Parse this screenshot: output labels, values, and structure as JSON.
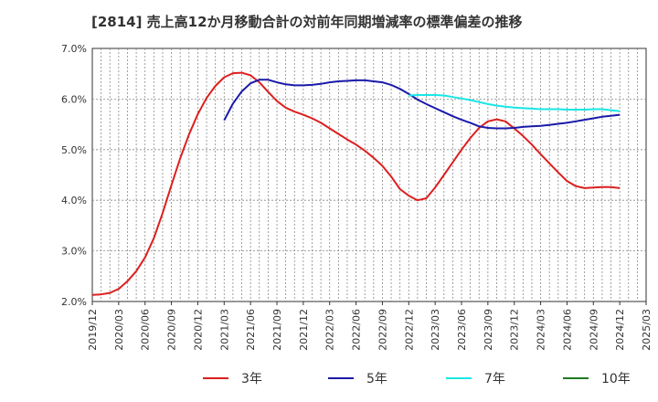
{
  "chart_data": {
    "type": "line",
    "title": "[2814]  売上高12か月移動合計の対前年同期増減率の標準偏差の推移",
    "xlabel": "",
    "ylabel": "",
    "ylim": [
      0.02,
      0.07
    ],
    "y_ticks": [
      "2.0%",
      "3.0%",
      "4.0%",
      "5.0%",
      "6.0%",
      "7.0%"
    ],
    "x_ticks": [
      "2019/12",
      "2020/03",
      "2020/06",
      "2020/09",
      "2020/12",
      "2021/03",
      "2021/06",
      "2021/09",
      "2021/12",
      "2022/03",
      "2022/06",
      "2022/09",
      "2022/12",
      "2023/03",
      "2023/06",
      "2023/09",
      "2023/12",
      "2024/03",
      "2024/06",
      "2024/09",
      "2024/12",
      "2025/03"
    ],
    "grid": true,
    "legend_position": "bottom",
    "series": [
      {
        "name": "3年",
        "color": "#dd1f1f",
        "points": [
          [
            "2019/12",
            0.0213
          ],
          [
            "2020/01",
            0.0214
          ],
          [
            "2020/02",
            0.0217
          ],
          [
            "2020/03",
            0.0225
          ],
          [
            "2020/04",
            0.024
          ],
          [
            "2020/05",
            0.026
          ],
          [
            "2020/06",
            0.0287
          ],
          [
            "2020/07",
            0.0325
          ],
          [
            "2020/08",
            0.0375
          ],
          [
            "2020/09",
            0.043
          ],
          [
            "2020/10",
            0.0483
          ],
          [
            "2020/11",
            0.053
          ],
          [
            "2020/12",
            0.057
          ],
          [
            "2021/01",
            0.0602
          ],
          [
            "2021/02",
            0.0626
          ],
          [
            "2021/03",
            0.0643
          ],
          [
            "2021/04",
            0.0651
          ],
          [
            "2021/05",
            0.0652
          ],
          [
            "2021/06",
            0.0647
          ],
          [
            "2021/07",
            0.0633
          ],
          [
            "2021/08",
            0.0614
          ],
          [
            "2021/09",
            0.0596
          ],
          [
            "2021/10",
            0.0583
          ],
          [
            "2021/11",
            0.0575
          ],
          [
            "2021/12",
            0.0569
          ],
          [
            "2022/01",
            0.0562
          ],
          [
            "2022/02",
            0.0553
          ],
          [
            "2022/03",
            0.0542
          ],
          [
            "2022/04",
            0.0531
          ],
          [
            "2022/05",
            0.052
          ],
          [
            "2022/06",
            0.051
          ],
          [
            "2022/07",
            0.0498
          ],
          [
            "2022/08",
            0.0484
          ],
          [
            "2022/09",
            0.0468
          ],
          [
            "2022/10",
            0.0447
          ],
          [
            "2022/11",
            0.0422
          ],
          [
            "2022/12",
            0.0409
          ],
          [
            "2023/01",
            0.04
          ],
          [
            "2023/02",
            0.0404
          ],
          [
            "2023/03",
            0.0425
          ],
          [
            "2023/04",
            0.045
          ],
          [
            "2023/05",
            0.0475
          ],
          [
            "2023/06",
            0.05
          ],
          [
            "2023/07",
            0.0523
          ],
          [
            "2023/08",
            0.0543
          ],
          [
            "2023/09",
            0.0556
          ],
          [
            "2023/10",
            0.056
          ],
          [
            "2023/11",
            0.0556
          ],
          [
            "2023/12",
            0.0542
          ],
          [
            "2024/01",
            0.0527
          ],
          [
            "2024/02",
            0.051
          ],
          [
            "2024/03",
            0.0491
          ],
          [
            "2024/04",
            0.0473
          ],
          [
            "2024/05",
            0.0455
          ],
          [
            "2024/06",
            0.0438
          ],
          [
            "2024/07",
            0.0428
          ],
          [
            "2024/08",
            0.0424
          ],
          [
            "2024/09",
            0.0425
          ],
          [
            "2024/10",
            0.0426
          ],
          [
            "2024/11",
            0.0426
          ],
          [
            "2024/12",
            0.0424
          ]
        ]
      },
      {
        "name": "5年",
        "color": "#1a1aaa",
        "points": [
          [
            "2021/03",
            0.0558
          ],
          [
            "2021/04",
            0.0591
          ],
          [
            "2021/05",
            0.0615
          ],
          [
            "2021/06",
            0.0631
          ],
          [
            "2021/07",
            0.0638
          ],
          [
            "2021/08",
            0.0638
          ],
          [
            "2021/09",
            0.0633
          ],
          [
            "2021/10",
            0.0629
          ],
          [
            "2021/11",
            0.0627
          ],
          [
            "2021/12",
            0.0627
          ],
          [
            "2022/01",
            0.0628
          ],
          [
            "2022/02",
            0.063
          ],
          [
            "2022/03",
            0.0633
          ],
          [
            "2022/04",
            0.0635
          ],
          [
            "2022/05",
            0.0636
          ],
          [
            "2022/06",
            0.0637
          ],
          [
            "2022/07",
            0.0637
          ],
          [
            "2022/08",
            0.0635
          ],
          [
            "2022/09",
            0.0633
          ],
          [
            "2022/10",
            0.0628
          ],
          [
            "2022/11",
            0.062
          ],
          [
            "2022/12",
            0.061
          ],
          [
            "2023/01",
            0.0599
          ],
          [
            "2023/02",
            0.059
          ],
          [
            "2023/03",
            0.0582
          ],
          [
            "2023/04",
            0.0574
          ],
          [
            "2023/05",
            0.0566
          ],
          [
            "2023/06",
            0.0559
          ],
          [
            "2023/07",
            0.0553
          ],
          [
            "2023/08",
            0.0546
          ],
          [
            "2023/09",
            0.0543
          ],
          [
            "2023/10",
            0.0542
          ],
          [
            "2023/11",
            0.0542
          ],
          [
            "2023/12",
            0.0543
          ],
          [
            "2024/01",
            0.0545
          ],
          [
            "2024/02",
            0.0546
          ],
          [
            "2024/03",
            0.0547
          ],
          [
            "2024/04",
            0.0549
          ],
          [
            "2024/05",
            0.0551
          ],
          [
            "2024/06",
            0.0553
          ],
          [
            "2024/07",
            0.0556
          ],
          [
            "2024/08",
            0.0559
          ],
          [
            "2024/09",
            0.0562
          ],
          [
            "2024/10",
            0.0565
          ],
          [
            "2024/11",
            0.0567
          ],
          [
            "2024/12",
            0.0569
          ]
        ]
      },
      {
        "name": "7年",
        "color": "#19e6e6",
        "points": [
          [
            "2022/12",
            0.0607
          ],
          [
            "2023/01",
            0.0608
          ],
          [
            "2023/02",
            0.0608
          ],
          [
            "2023/03",
            0.0608
          ],
          [
            "2023/04",
            0.0607
          ],
          [
            "2023/05",
            0.0604
          ],
          [
            "2023/06",
            0.0601
          ],
          [
            "2023/07",
            0.0598
          ],
          [
            "2023/08",
            0.0594
          ],
          [
            "2023/09",
            0.059
          ],
          [
            "2023/10",
            0.0587
          ],
          [
            "2023/11",
            0.0585
          ],
          [
            "2023/12",
            0.0583
          ],
          [
            "2024/01",
            0.0582
          ],
          [
            "2024/02",
            0.0581
          ],
          [
            "2024/03",
            0.058
          ],
          [
            "2024/04",
            0.058
          ],
          [
            "2024/05",
            0.058
          ],
          [
            "2024/06",
            0.0579
          ],
          [
            "2024/07",
            0.0579
          ],
          [
            "2024/08",
            0.0579
          ],
          [
            "2024/09",
            0.058
          ],
          [
            "2024/10",
            0.058
          ],
          [
            "2024/11",
            0.0578
          ],
          [
            "2024/12",
            0.0576
          ]
        ]
      },
      {
        "name": "10年",
        "color": "#1e7a1e",
        "points": []
      }
    ]
  }
}
